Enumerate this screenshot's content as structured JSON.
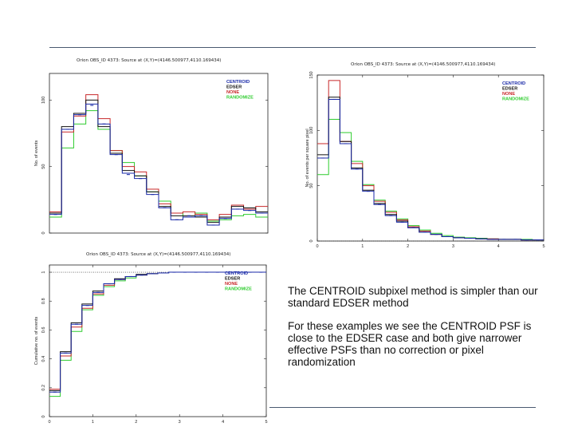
{
  "notes": {
    "p1": "The CENTROID subpixel method is simpler than our standard EDSER method",
    "p2": "For these examples we see the CENTROID PSF is close to the EDSER case and both give narrower effective PSFs than no correction or pixel randomization"
  },
  "chart_data": [
    {
      "type": "line",
      "title": "Orion OBS_ID 4373:  Source at (X,Y)=(4146.500977,4110.169434)",
      "xlabel": "",
      "ylabel": "No. of events",
      "xlim": [
        0,
        24
      ],
      "ylim": [
        0,
        120
      ],
      "xticks": [],
      "yticks": [
        {
          "v": 0,
          "label": "0"
        },
        {
          "v": 50,
          "label": "50"
        },
        {
          "v": 100,
          "label": "100"
        }
      ],
      "legend": [
        "CENTROID",
        "EDSER",
        "NONE",
        "RANDOMIZE"
      ],
      "colors": [
        "#1a2aa8",
        "#111111",
        "#c8282a",
        "#2fcc2f"
      ],
      "series": [
        {
          "name": "CENTROID",
          "values": [
            14,
            78,
            89,
            97,
            82,
            59,
            45,
            41,
            29,
            19,
            10,
            12,
            13,
            6,
            11,
            18,
            17,
            15
          ]
        },
        {
          "name": "EDSER",
          "values": [
            15,
            80,
            90,
            100,
            80,
            60,
            47,
            43,
            31,
            20,
            13,
            13,
            12,
            8,
            12,
            20,
            19,
            16
          ]
        },
        {
          "name": "NONE",
          "values": [
            16,
            76,
            88,
            104,
            86,
            62,
            50,
            46,
            33,
            22,
            15,
            16,
            14,
            10,
            14,
            21,
            18,
            20
          ]
        },
        {
          "name": "RANDOMIZE",
          "values": [
            12,
            64,
            82,
            92,
            78,
            62,
            53,
            43,
            31,
            24,
            15,
            12,
            15,
            9,
            10,
            13,
            14,
            12
          ]
        }
      ],
      "markers": [
        14,
        78,
        89,
        96,
        82,
        59,
        44,
        41,
        29,
        19,
        10,
        13,
        13,
        6,
        11,
        18,
        17,
        15
      ]
    },
    {
      "type": "line",
      "title": "Orion OBS_ID 4373:  Source at (X,Y)=(4146.500977,4110.169434)",
      "xlabel": "",
      "ylabel": "No. of events per square pixel",
      "xlim": [
        0,
        5
      ],
      "ylim": [
        0,
        150
      ],
      "xticks": [
        {
          "v": 0,
          "label": "0"
        },
        {
          "v": 1,
          "label": "1"
        },
        {
          "v": 2,
          "label": "2"
        },
        {
          "v": 3,
          "label": "3"
        },
        {
          "v": 4,
          "label": "4"
        },
        {
          "v": 5,
          "label": "5"
        }
      ],
      "yticks": [
        {
          "v": 0,
          "label": "0"
        },
        {
          "v": 50,
          "label": "50"
        },
        {
          "v": 100,
          "label": "100"
        },
        {
          "v": 150,
          "label": "150"
        }
      ],
      "reference_line": 0,
      "legend": [
        "CENTROID",
        "EDSER",
        "NONE",
        "RANDOMIZE"
      ],
      "colors": [
        "#1a2aa8",
        "#111111",
        "#c8282a",
        "#2fcc2f"
      ],
      "series": [
        {
          "name": "CENTROID",
          "values": [
            75,
            128,
            88,
            65,
            45,
            33,
            23,
            17,
            12,
            8,
            6,
            4,
            3,
            2.5,
            2,
            1.5,
            1.5,
            1.5,
            1,
            1
          ]
        },
        {
          "name": "EDSER",
          "values": [
            78,
            130,
            90,
            66,
            46,
            34,
            24,
            18,
            12,
            8,
            6,
            4,
            3,
            2.5,
            2,
            1.5,
            1.5,
            1.5,
            1,
            1
          ]
        },
        {
          "name": "NONE",
          "values": [
            88,
            145,
            90,
            70,
            50,
            36,
            26,
            19,
            13,
            9,
            6,
            4,
            3,
            2.5,
            2,
            2,
            1.5,
            1.5,
            1,
            1
          ]
        },
        {
          "name": "RANDOMIZE",
          "values": [
            60,
            110,
            98,
            72,
            51,
            37,
            27,
            20,
            14,
            10,
            7,
            5,
            3.5,
            3,
            2.5,
            2,
            1.5,
            1.5,
            1.5,
            1
          ]
        }
      ],
      "markers": [
        75,
        128,
        88,
        65,
        45,
        33,
        23,
        17,
        12,
        8,
        6,
        4,
        3,
        2.5,
        2,
        1.5,
        1.5,
        1.5,
        1,
        1
      ]
    },
    {
      "type": "line",
      "title": "Orion OBS_ID 4373:  Source at (X,Y)=(4146.500977,4110.169434)",
      "xlabel": "",
      "ylabel": "Cumulative no. of events",
      "xlim": [
        0,
        5
      ],
      "ylim": [
        0,
        1.05
      ],
      "xticks": [
        {
          "v": 0,
          "label": "0"
        },
        {
          "v": 1,
          "label": "1"
        },
        {
          "v": 2,
          "label": "2"
        },
        {
          "v": 3,
          "label": "3"
        },
        {
          "v": 4,
          "label": "4"
        },
        {
          "v": 5,
          "label": "5"
        }
      ],
      "yticks": [
        {
          "v": 0,
          "label": "0"
        },
        {
          "v": 0.2,
          "label": "0.2"
        },
        {
          "v": 0.4,
          "label": "0.4"
        },
        {
          "v": 0.6,
          "label": "0.6"
        },
        {
          "v": 0.8,
          "label": "0.8"
        },
        {
          "v": 1,
          "label": "1"
        }
      ],
      "reference_line": 1,
      "legend": [
        "CENTROID",
        "EDSER",
        "NONE",
        "RANDOMIZE"
      ],
      "colors": [
        "#1a2aa8",
        "#111111",
        "#c8282a",
        "#2fcc2f"
      ],
      "series": [
        {
          "name": "CENTROID",
          "values": [
            0.17,
            0.44,
            0.64,
            0.77,
            0.86,
            0.92,
            0.95,
            0.97,
            0.98,
            0.99,
            0.995,
            1,
            1,
            1,
            1,
            1,
            1,
            1,
            1,
            1
          ]
        },
        {
          "name": "EDSER",
          "values": [
            0.18,
            0.45,
            0.65,
            0.78,
            0.87,
            0.92,
            0.955,
            0.97,
            0.985,
            0.99,
            0.995,
            1,
            1,
            1,
            1,
            1,
            1,
            1,
            1,
            1
          ]
        },
        {
          "name": "NONE",
          "values": [
            0.19,
            0.42,
            0.62,
            0.75,
            0.85,
            0.91,
            0.95,
            0.97,
            0.98,
            0.99,
            0.995,
            1,
            1,
            1,
            1,
            1,
            1,
            1,
            1,
            1
          ]
        },
        {
          "name": "RANDOMIZE",
          "values": [
            0.14,
            0.39,
            0.59,
            0.74,
            0.84,
            0.9,
            0.94,
            0.96,
            0.98,
            0.99,
            0.995,
            1,
            1,
            1,
            1,
            1,
            1,
            1,
            1,
            1
          ]
        }
      ],
      "markers": [
        0.17,
        0.44,
        0.64,
        0.77,
        0.86,
        0.92,
        0.95,
        0.97,
        0.98,
        0.99,
        0.995,
        1,
        1,
        1,
        1,
        1,
        1,
        1,
        1,
        1
      ]
    }
  ]
}
